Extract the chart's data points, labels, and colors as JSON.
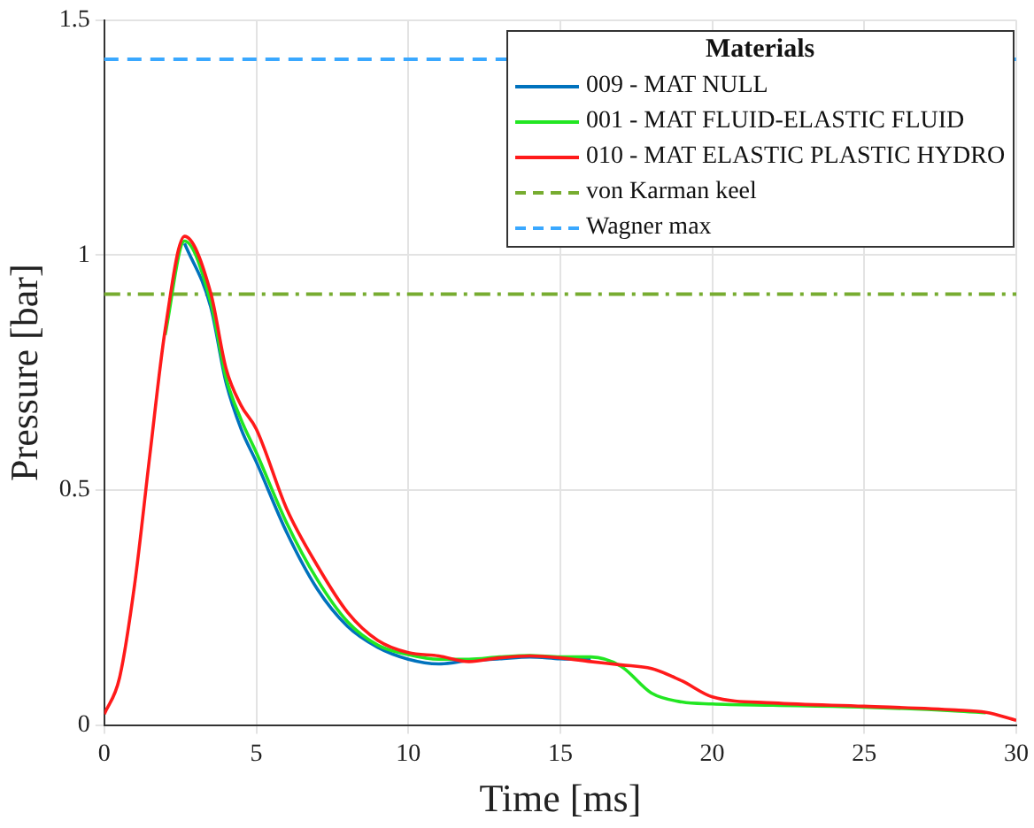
{
  "chart_data": {
    "type": "line",
    "xlabel": "Time [ms]",
    "ylabel": "Pressure [bar]",
    "legend_title": "Materials",
    "x": [
      0,
      0.5,
      1,
      1.5,
      2,
      2.64,
      3.5,
      4,
      4.5,
      5,
      6,
      7,
      8,
      9,
      10,
      11,
      12,
      13,
      14,
      15,
      16,
      17,
      18,
      19,
      20,
      22,
      25,
      28,
      29,
      30
    ],
    "series": [
      {
        "name": "009 - MAT NULL",
        "color": "#0072bd",
        "values": [
          null,
          null,
          null,
          null,
          null,
          1.025,
          0.89,
          0.73,
          0.63,
          0.56,
          0.41,
          0.29,
          0.21,
          0.165,
          0.14,
          0.13,
          0.137,
          0.141,
          0.145,
          0.141,
          0.14,
          null,
          null,
          null,
          null,
          null,
          null,
          null,
          null,
          null
        ]
      },
      {
        "name": "001 - MAT FLUID-ELASTIC FLUID",
        "color": "#22e622",
        "values": [
          null,
          null,
          null,
          null,
          0.83,
          1.03,
          0.9,
          0.74,
          0.65,
          0.58,
          0.43,
          0.31,
          0.22,
          0.17,
          0.15,
          0.14,
          0.14,
          0.145,
          0.148,
          0.145,
          0.145,
          0.125,
          0.068,
          0.049,
          0.045,
          0.042,
          0.038,
          0.03,
          0.026,
          null
        ]
      },
      {
        "name": "010 - MAT ELASTIC PLASTIC HYDRO",
        "color": "#ff1a1a",
        "values": [
          0.023,
          0.1,
          0.3,
          0.575,
          0.84,
          1.04,
          0.92,
          0.76,
          0.68,
          0.63,
          0.46,
          0.34,
          0.24,
          0.18,
          0.154,
          0.147,
          0.135,
          0.143,
          0.147,
          0.143,
          0.135,
          0.128,
          0.12,
          0.094,
          0.06,
          0.047,
          0.04,
          0.032,
          0.027,
          0.01
        ]
      }
    ],
    "ref_lines": [
      {
        "axis": "y",
        "value": 0.917,
        "label": "von Karman keel",
        "color": "#77ac30",
        "line_style": "dashdot"
      },
      {
        "axis": "y",
        "value": 1.417,
        "label": "Wagner max",
        "color": "#3aa8ff",
        "line_style": "dashed"
      }
    ],
    "xlim": [
      0,
      30
    ],
    "xticks": [
      0,
      5,
      10,
      15,
      20,
      25,
      30
    ],
    "ylim": [
      0,
      1.5
    ],
    "yticks": [
      0,
      {
        "value": 0.5,
        "label": "0.5"
      },
      1,
      {
        "value": 1.5,
        "label": "1.5"
      }
    ],
    "grid": true,
    "legend": "top right",
    "marker": "none",
    "line_style": "solid"
  }
}
